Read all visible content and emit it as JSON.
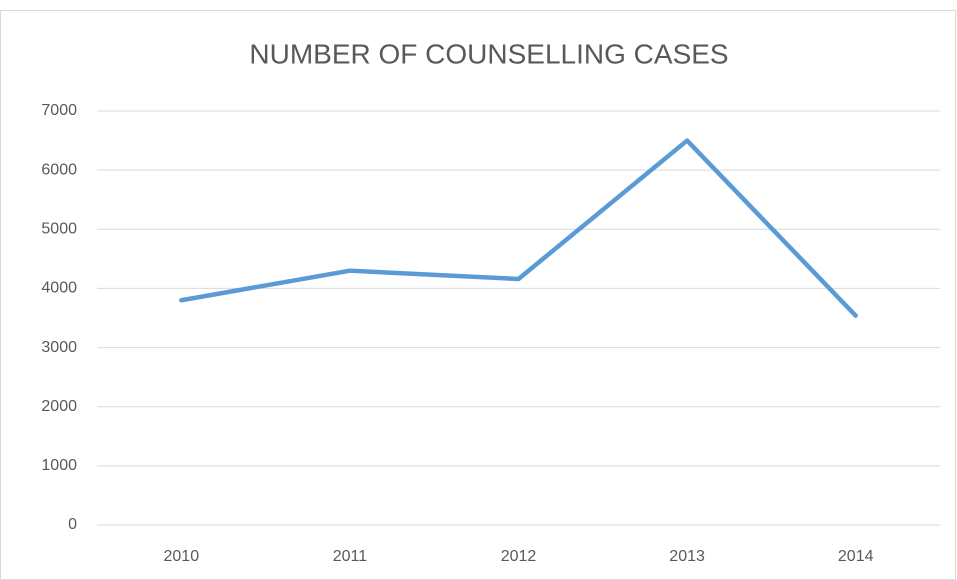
{
  "chart_data": {
    "type": "line",
    "title": "NUMBER OF COUNSELLING CASES",
    "categories": [
      "2010",
      "2011",
      "2012",
      "2013",
      "2014"
    ],
    "values": [
      3800,
      4300,
      4160,
      6500,
      3540
    ],
    "color": "#5b9bd5",
    "ylim": [
      0,
      7000
    ],
    "yticks": [
      0,
      1000,
      2000,
      3000,
      4000,
      5000,
      6000,
      7000
    ],
    "grid": true
  }
}
